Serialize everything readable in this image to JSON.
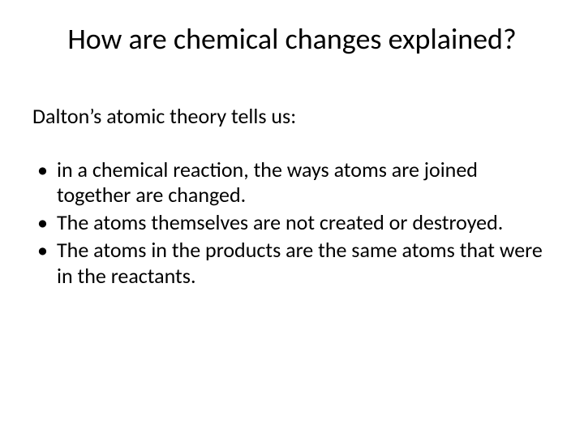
{
  "slide": {
    "background_color": "#ffffff",
    "text_color": "#000000",
    "font_family": "Calibri",
    "title": {
      "text": "How are chemical changes explained?",
      "fontsize": 36,
      "weight": 400,
      "align": "center"
    },
    "body": {
      "fontsize": 26,
      "intro": "Dalton’s atomic theory tells us:",
      "bullets": [
        "in a chemical reaction, the ways atoms are joined together are changed.",
        "The atoms themselves are not created or destroyed.",
        "The atoms in the products are the same atoms that were in the reactants."
      ]
    }
  }
}
